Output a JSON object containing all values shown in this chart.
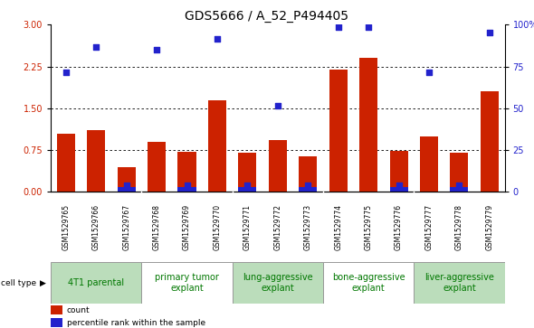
{
  "title": "GDS5666 / A_52_P494405",
  "samples": [
    "GSM1529765",
    "GSM1529766",
    "GSM1529767",
    "GSM1529768",
    "GSM1529769",
    "GSM1529770",
    "GSM1529771",
    "GSM1529772",
    "GSM1529773",
    "GSM1529774",
    "GSM1529775",
    "GSM1529776",
    "GSM1529777",
    "GSM1529778",
    "GSM1529779"
  ],
  "bar_values": [
    1.05,
    1.1,
    0.45,
    0.9,
    0.72,
    1.65,
    0.7,
    0.93,
    0.63,
    2.2,
    2.4,
    0.73,
    1.0,
    0.7,
    1.8
  ],
  "dot_values_left_scale": [
    2.15,
    2.6,
    0.12,
    2.55,
    0.12,
    2.75,
    0.12,
    1.55,
    0.12,
    2.95,
    2.95,
    0.12,
    2.15,
    0.12,
    2.85
  ],
  "blue_bar_values": [
    0,
    0,
    0.08,
    0,
    0.08,
    0,
    0.08,
    0,
    0.08,
    0,
    0,
    0.08,
    0,
    0.08,
    0
  ],
  "cell_types": [
    {
      "label": "4T1 parental",
      "start": 0,
      "end": 2,
      "even": true
    },
    {
      "label": "primary tumor\nexplant",
      "start": 3,
      "end": 5,
      "even": false
    },
    {
      "label": "lung-aggressive\nexplant",
      "start": 6,
      "end": 8,
      "even": true
    },
    {
      "label": "bone-aggressive\nexplant",
      "start": 9,
      "end": 11,
      "even": false
    },
    {
      "label": "liver-aggressive\nexplant",
      "start": 12,
      "end": 14,
      "even": true
    }
  ],
  "ylim_left": [
    0,
    3
  ],
  "ylim_right": [
    0,
    100
  ],
  "yticks_left": [
    0,
    0.75,
    1.5,
    2.25,
    3
  ],
  "yticks_right": [
    0,
    25,
    50,
    75,
    100
  ],
  "bar_color": "#cc2200",
  "dot_color": "#2222cc",
  "cell_color_even": "#bbddbb",
  "cell_color_odd": "#ffffff",
  "sample_row_color": "#c8c8c8",
  "title_fontsize": 10,
  "tick_fontsize": 7,
  "cell_label_fontsize": 7
}
